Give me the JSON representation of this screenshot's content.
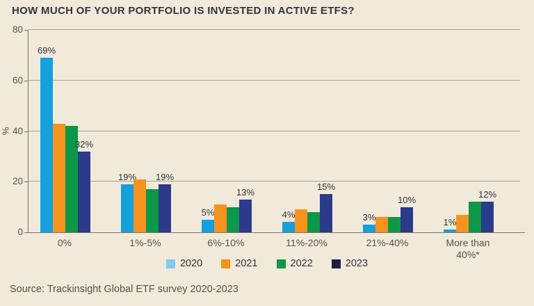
{
  "title": "HOW MUCH OF YOUR PORTFOLIO IS INVESTED IN ACTIVE ETFS?",
  "source": "Source: Trackinsight Global ETF survey 2020-2023",
  "colors": {
    "background": "#f1e9da",
    "grid": "#a8a296",
    "axis": "#7a7569",
    "text_primary": "#34323c",
    "text_secondary": "#57534b"
  },
  "chart_data": {
    "type": "bar",
    "title": "HOW MUCH OF YOUR PORTFOLIO IS INVESTED IN ACTIVE ETFS?",
    "categories": [
      "0%",
      "1%-5%",
      "6%-10%",
      "11%-20%",
      "21%-40%",
      "More than 40%*"
    ],
    "series": [
      {
        "name": "2020",
        "color": "#14a0dd",
        "legend_color": "#85c9ef",
        "labeled": true,
        "values": [
          69,
          19,
          5,
          4,
          3,
          1
        ]
      },
      {
        "name": "2021",
        "color": "#f6921e",
        "legend_color": "#f6921e",
        "labeled": false,
        "values": [
          43,
          21,
          11,
          9,
          6,
          7
        ]
      },
      {
        "name": "2022",
        "color": "#0d9748",
        "legend_color": "#0d9748",
        "labeled": false,
        "values": [
          42,
          17,
          10,
          8,
          6,
          12
        ]
      },
      {
        "name": "2023",
        "color": "#2c3a8a",
        "legend_color": "#1b1f4a",
        "labeled": true,
        "values": [
          32,
          19,
          13,
          15,
          10,
          12
        ]
      }
    ],
    "value_label_format": "{v}%",
    "xlabel": "",
    "ylabel": "%",
    "yticks": [
      0,
      20,
      40,
      60,
      80
    ],
    "ylim": [
      0,
      80
    ],
    "grid": true,
    "legend_position": "bottom"
  }
}
